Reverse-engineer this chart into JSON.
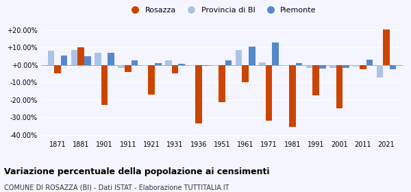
{
  "years": [
    1871,
    1881,
    1901,
    1911,
    1921,
    1931,
    1936,
    1951,
    1961,
    1971,
    1981,
    1991,
    2001,
    2011,
    2021
  ],
  "rosazza": [
    -5.0,
    10.0,
    -23.0,
    -4.0,
    -17.0,
    -5.0,
    -33.5,
    -21.5,
    -10.0,
    -32.0,
    -35.5,
    -17.5,
    -25.0,
    -2.5,
    20.5
  ],
  "provincia_bi": [
    8.0,
    8.5,
    7.0,
    -1.5,
    -0.5,
    2.5,
    -0.5,
    -0.5,
    8.5,
    1.5,
    -0.5,
    -1.5,
    -1.5,
    -1.0,
    -7.0
  ],
  "piemonte": [
    5.5,
    5.0,
    7.0,
    2.5,
    1.0,
    0.5,
    -0.5,
    2.5,
    10.5,
    13.0,
    1.0,
    -2.0,
    -1.5,
    3.0,
    -2.5
  ],
  "color_rosazza": "#cc4400",
  "color_provincia": "#aac4e8",
  "color_piemonte": "#5588cc",
  "title": "Variazione percentuale della popolazione ai censimenti",
  "subtitle": "COMUNE DI ROSAZZA (BI) - Dati ISTAT - Elaborazione TUTTITALIA.IT",
  "yticks": [
    -40,
    -30,
    -20,
    -10,
    0,
    10,
    20
  ],
  "ylim": [
    -42,
    24
  ],
  "background_color": "#f5f5ff",
  "bar_width": 0.28
}
